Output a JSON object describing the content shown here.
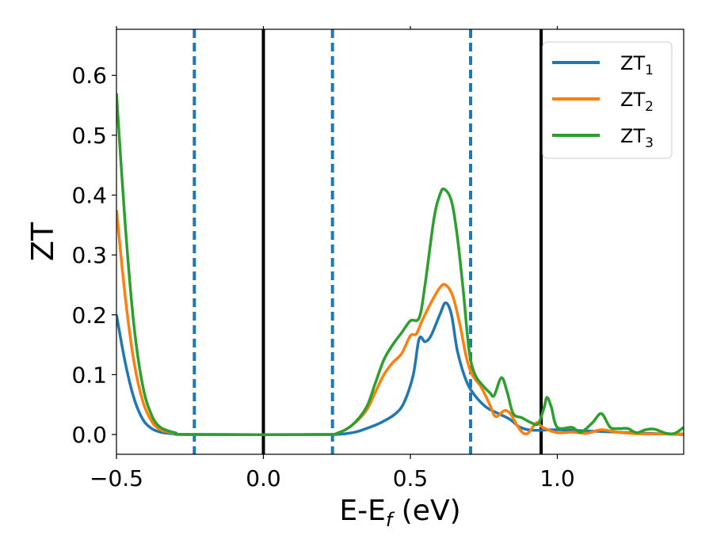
{
  "chart_data": {
    "type": "line",
    "xlabel": "E-E",
    "xlabel_sub": "f",
    "xlabel_unit": " (eV)",
    "ylabel": "ZT",
    "xlim": [
      -0.5,
      1.43
    ],
    "ylim": [
      -0.033,
      0.677
    ],
    "xticks": [
      -0.5,
      0.0,
      0.5,
      1.0
    ],
    "xtick_labels": [
      "−0.5",
      "0.0",
      "0.5",
      "1.0"
    ],
    "yticks": [
      0.0,
      0.1,
      0.2,
      0.3,
      0.4,
      0.5,
      0.6
    ],
    "ytick_labels": [
      "0.0",
      "0.1",
      "0.2",
      "0.3",
      "0.4",
      "0.5",
      "0.6"
    ],
    "grid": false,
    "legend": "top-right",
    "vlines_solid": [
      0.0,
      0.945
    ],
    "vlines_dashed": [
      -0.235,
      0.235,
      0.705
    ],
    "vline_solid_color": "#000000",
    "vline_dashed_color": "#1f77b4",
    "series": [
      {
        "name": "ZT",
        "sub": "1",
        "color": "#1f77b4",
        "points": [
          [
            -0.5,
            0.2
          ],
          [
            -0.47,
            0.12
          ],
          [
            -0.44,
            0.06
          ],
          [
            -0.41,
            0.025
          ],
          [
            -0.38,
            0.01
          ],
          [
            -0.35,
            0.004
          ],
          [
            -0.3,
            0.001
          ],
          [
            -0.25,
            0
          ],
          [
            0.2,
            0
          ],
          [
            0.3,
            0.003
          ],
          [
            0.35,
            0.01
          ],
          [
            0.4,
            0.02
          ],
          [
            0.45,
            0.035
          ],
          [
            0.48,
            0.055
          ],
          [
            0.51,
            0.1
          ],
          [
            0.53,
            0.16
          ],
          [
            0.55,
            0.155
          ],
          [
            0.57,
            0.165
          ],
          [
            0.6,
            0.2
          ],
          [
            0.62,
            0.22
          ],
          [
            0.64,
            0.2
          ],
          [
            0.66,
            0.14
          ],
          [
            0.69,
            0.09
          ],
          [
            0.72,
            0.065
          ],
          [
            0.76,
            0.045
          ],
          [
            0.8,
            0.035
          ],
          [
            0.84,
            0.025
          ],
          [
            0.87,
            0.013
          ],
          [
            0.9,
            0.008
          ],
          [
            0.93,
            0.007
          ],
          [
            1.0,
            0.008
          ],
          [
            1.1,
            0.006
          ],
          [
            1.2,
            0.004
          ],
          [
            1.3,
            0.002
          ],
          [
            1.43,
            0.0
          ]
        ]
      },
      {
        "name": "ZT",
        "sub": "2",
        "color": "#ff7f0e",
        "points": [
          [
            -0.5,
            0.375
          ],
          [
            -0.47,
            0.23
          ],
          [
            -0.44,
            0.12
          ],
          [
            -0.41,
            0.055
          ],
          [
            -0.38,
            0.022
          ],
          [
            -0.35,
            0.008
          ],
          [
            -0.3,
            0.002
          ],
          [
            -0.25,
            0
          ],
          [
            0.2,
            0
          ],
          [
            0.25,
            0.002
          ],
          [
            0.3,
            0.015
          ],
          [
            0.35,
            0.04
          ],
          [
            0.38,
            0.07
          ],
          [
            0.41,
            0.1
          ],
          [
            0.44,
            0.12
          ],
          [
            0.47,
            0.135
          ],
          [
            0.5,
            0.165
          ],
          [
            0.52,
            0.168
          ],
          [
            0.54,
            0.19
          ],
          [
            0.57,
            0.22
          ],
          [
            0.6,
            0.245
          ],
          [
            0.62,
            0.25
          ],
          [
            0.645,
            0.23
          ],
          [
            0.67,
            0.18
          ],
          [
            0.69,
            0.13
          ],
          [
            0.71,
            0.1
          ],
          [
            0.74,
            0.08
          ],
          [
            0.77,
            0.05
          ],
          [
            0.79,
            0.03
          ],
          [
            0.82,
            0.04
          ],
          [
            0.84,
            0.035
          ],
          [
            0.86,
            0.018
          ],
          [
            0.88,
            0.004
          ],
          [
            0.9,
            0.002
          ],
          [
            0.93,
            0.02
          ],
          [
            0.95,
            0.012
          ],
          [
            1.0,
            0.003
          ],
          [
            1.05,
            0.004
          ],
          [
            1.1,
            0.002
          ],
          [
            1.15,
            0.008
          ],
          [
            1.2,
            0.004
          ],
          [
            1.25,
            0.002
          ],
          [
            1.3,
            0.001
          ],
          [
            1.43,
            0.001
          ]
        ]
      },
      {
        "name": "ZT",
        "sub": "3",
        "color": "#2ca02c",
        "points": [
          [
            -0.5,
            0.57
          ],
          [
            -0.47,
            0.35
          ],
          [
            -0.44,
            0.18
          ],
          [
            -0.41,
            0.08
          ],
          [
            -0.38,
            0.032
          ],
          [
            -0.35,
            0.012
          ],
          [
            -0.3,
            0.003
          ],
          [
            -0.25,
            0
          ],
          [
            0.2,
            0
          ],
          [
            0.25,
            0.002
          ],
          [
            0.3,
            0.015
          ],
          [
            0.35,
            0.045
          ],
          [
            0.38,
            0.085
          ],
          [
            0.41,
            0.125
          ],
          [
            0.44,
            0.15
          ],
          [
            0.47,
            0.17
          ],
          [
            0.5,
            0.19
          ],
          [
            0.53,
            0.195
          ],
          [
            0.55,
            0.25
          ],
          [
            0.58,
            0.36
          ],
          [
            0.6,
            0.4
          ],
          [
            0.615,
            0.41
          ],
          [
            0.64,
            0.39
          ],
          [
            0.66,
            0.33
          ],
          [
            0.68,
            0.24
          ],
          [
            0.7,
            0.14
          ],
          [
            0.72,
            0.1
          ],
          [
            0.75,
            0.08
          ],
          [
            0.77,
            0.07
          ],
          [
            0.785,
            0.065
          ],
          [
            0.81,
            0.095
          ],
          [
            0.83,
            0.07
          ],
          [
            0.85,
            0.035
          ],
          [
            0.88,
            0.028
          ],
          [
            0.91,
            0.02
          ],
          [
            0.935,
            0.018
          ],
          [
            0.955,
            0.045
          ],
          [
            0.965,
            0.062
          ],
          [
            0.98,
            0.045
          ],
          [
            1.0,
            0.012
          ],
          [
            1.05,
            0.012
          ],
          [
            1.08,
            0.004
          ],
          [
            1.12,
            0.02
          ],
          [
            1.15,
            0.035
          ],
          [
            1.18,
            0.012
          ],
          [
            1.21,
            0.01
          ],
          [
            1.24,
            0.01
          ],
          [
            1.27,
            0.003
          ],
          [
            1.3,
            0.008
          ],
          [
            1.33,
            0.009
          ],
          [
            1.37,
            0.002
          ],
          [
            1.4,
            0.002
          ],
          [
            1.43,
            0.012
          ]
        ]
      }
    ]
  }
}
